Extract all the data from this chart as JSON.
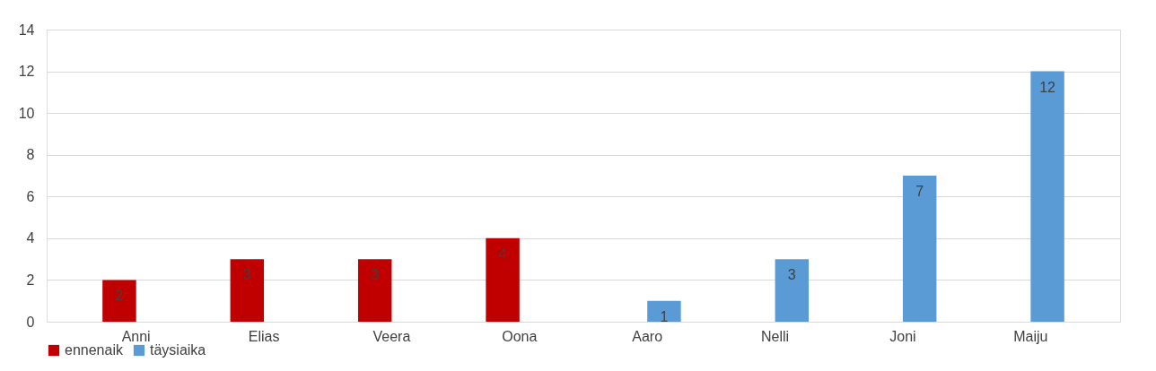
{
  "chart_data": {
    "type": "bar",
    "categories": [
      "Anni",
      "Elias",
      "Veera",
      "Oona",
      "Aaro",
      "Nelli",
      "Joni",
      "Maiju"
    ],
    "series": [
      {
        "name": "ennenaik",
        "color": "#c00000",
        "values": [
          2,
          3,
          3,
          4,
          null,
          null,
          null,
          null
        ]
      },
      {
        "name": "täysiaika",
        "color": "#5b9bd5",
        "values": [
          null,
          null,
          null,
          null,
          1,
          3,
          7,
          12
        ]
      }
    ],
    "ylim": [
      0,
      14
    ],
    "yticks": [
      0,
      2,
      4,
      6,
      8,
      10,
      12,
      14
    ],
    "grid": "y",
    "legend": "bottom",
    "data_labels": true
  }
}
